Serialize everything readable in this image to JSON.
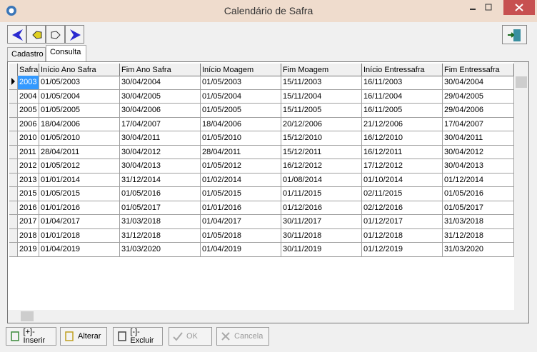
{
  "window": {
    "title": "Calendário de Safra"
  },
  "tabs": [
    "Cadastro",
    "Consulta"
  ],
  "table": {
    "columns": [
      "Safra",
      "Início Ano Safra",
      "Fim Ano Safra",
      "Início Moagem",
      "Fim Moagem",
      "Início Entressafra",
      "Fim Entressafra"
    ],
    "rows": [
      [
        "2003",
        "01/05/2003",
        "30/04/2004",
        "01/05/2003",
        "15/11/2003",
        "16/11/2003",
        "30/04/2004"
      ],
      [
        "2004",
        "01/05/2004",
        "30/04/2005",
        "01/05/2004",
        "15/11/2004",
        "16/11/2004",
        "29/04/2005"
      ],
      [
        "2005",
        "01/05/2005",
        "30/04/2006",
        "01/05/2005",
        "15/11/2005",
        "16/11/2005",
        "29/04/2006"
      ],
      [
        "2006",
        "18/04/2006",
        "17/04/2007",
        "18/04/2006",
        "20/12/2006",
        "21/12/2006",
        "17/04/2007"
      ],
      [
        "2010",
        "01/05/2010",
        "30/04/2011",
        "01/05/2010",
        "15/12/2010",
        "16/12/2010",
        "30/04/2011"
      ],
      [
        "2011",
        "28/04/2011",
        "30/04/2012",
        "28/04/2011",
        "15/12/2011",
        "16/12/2011",
        "30/04/2012"
      ],
      [
        "2012",
        "01/05/2012",
        "30/04/2013",
        "01/05/2012",
        "16/12/2012",
        "17/12/2012",
        "30/04/2013"
      ],
      [
        "2013",
        "01/01/2014",
        "31/12/2014",
        "01/02/2014",
        "01/08/2014",
        "01/10/2014",
        "01/12/2014"
      ],
      [
        "2015",
        "01/05/2015",
        "01/05/2016",
        "01/05/2015",
        "01/11/2015",
        "02/11/2015",
        "01/05/2016"
      ],
      [
        "2016",
        "01/01/2016",
        "01/05/2017",
        "01/01/2016",
        "01/12/2016",
        "02/12/2016",
        "01/05/2017"
      ],
      [
        "2017",
        "01/04/2017",
        "31/03/2018",
        "01/04/2017",
        "30/11/2017",
        "01/12/2017",
        "31/03/2018"
      ],
      [
        "2018",
        "01/01/2018",
        "31/12/2018",
        "01/05/2018",
        "30/11/2018",
        "01/12/2018",
        "31/12/2018"
      ],
      [
        "2019",
        "01/04/2019",
        "31/03/2020",
        "01/04/2019",
        "30/11/2019",
        "01/12/2019",
        "31/03/2020"
      ]
    ]
  },
  "buttons": [
    "[+]-Inserir",
    "Alterar",
    "[-]-Excluir",
    "OK",
    "Cancela"
  ]
}
